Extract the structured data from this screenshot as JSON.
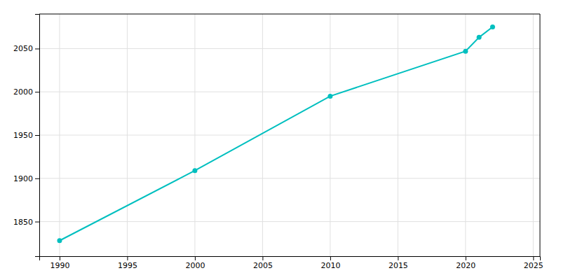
{
  "chart_data": {
    "type": "line",
    "x": [
      1990,
      2000,
      2010,
      2020,
      2021,
      2022
    ],
    "values": [
      1828,
      1909,
      1995,
      2047,
      2063,
      2075
    ],
    "color": "#00BFBF",
    "marker": "circle",
    "xlim": [
      1988.5,
      2025.5
    ],
    "ylim": [
      1810,
      2090
    ],
    "xticks": [
      1990,
      1995,
      2000,
      2005,
      2010,
      2015,
      2020,
      2025
    ],
    "yticks": [
      1850,
      1900,
      1950,
      2000,
      2050
    ],
    "grid": true
  }
}
